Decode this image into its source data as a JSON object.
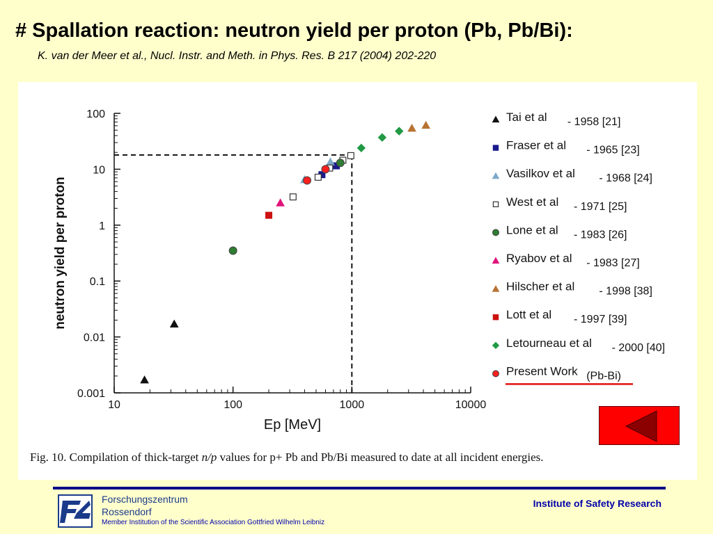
{
  "slide": {
    "title": "# Spallation reaction: neutron yield per proton (Pb, Pb/Bi):",
    "subtitle": "K. van der Meer et al., Nucl. Instr. and Meth. in Phys. Res. B 217 (2004) 202-220",
    "caption_prefix": "Fig. 10. Compilation of thick-target ",
    "caption_italic": "n/p",
    "caption_suffix": " values for p+ Pb and Pb/Bi measured to date at all incident energies.",
    "back_button_icon": "triangle-left-icon"
  },
  "footer": {
    "org_line1": "Forschungszentrum",
    "org_line2": "Rossendorf",
    "org_line3": "Member Institution of the Scientific Association Gottfried Wilhelm Leibniz",
    "institute": "Institute of Safety Research",
    "logo_icon": "fzr-logo-icon"
  },
  "colors": {
    "background": "#ffffcc",
    "accent_red": "#ff0000",
    "footer_blue": "#0000aa"
  },
  "chart_data": {
    "type": "scatter",
    "title": "",
    "xlabel": "Ep [MeV]",
    "ylabel": "neutron yield per proton",
    "xscale": "log",
    "yscale": "log",
    "xlim": [
      10,
      10000
    ],
    "ylim": [
      0.001,
      100
    ],
    "xticks": [
      "10",
      "100",
      "1000",
      "10000"
    ],
    "yticks": [
      "0.001",
      "0.01",
      "0.1",
      "1",
      "10",
      "100"
    ],
    "legend_position": "right",
    "reference_lines": {
      "x": 1000,
      "y": 18
    },
    "series": [
      {
        "name": "Tai et al",
        "ref": "- 1958 [21]",
        "marker": "triangle",
        "color": "#111111",
        "filled": true,
        "points": [
          [
            18,
            0.0017
          ],
          [
            32,
            0.017
          ]
        ]
      },
      {
        "name": "Fraser et al",
        "ref": "- 1965 [23]",
        "marker": "square",
        "color": "#1a1a8c",
        "filled": true,
        "points": [
          [
            560,
            8
          ],
          [
            740,
            11.5
          ]
        ]
      },
      {
        "name": "Vasilkov et al",
        "ref": "- 1968 [24]",
        "marker": "triangle",
        "color": "#7fa9c9",
        "filled": true,
        "points": [
          [
            400,
            6.5
          ],
          [
            660,
            13.5
          ]
        ]
      },
      {
        "name": "West et al",
        "ref": "- 1971 [25]",
        "marker": "square",
        "color": "#333333",
        "filled": false,
        "points": [
          [
            320,
            3.2
          ],
          [
            520,
            7.2
          ],
          [
            650,
            10.5
          ],
          [
            840,
            14.5
          ],
          [
            980,
            17.5
          ]
        ]
      },
      {
        "name": "Lone et al",
        "ref": "- 1983 [26]",
        "marker": "circle",
        "color": "#2e7d32",
        "filled": true,
        "points": [
          [
            100,
            0.35
          ],
          [
            800,
            13
          ]
        ]
      },
      {
        "name": "Ryabov et al",
        "ref": "- 1983 [27]",
        "marker": "triangle",
        "color": "#e0147a",
        "filled": true,
        "points": [
          [
            250,
            2.5
          ]
        ]
      },
      {
        "name": "Hilscher et al",
        "ref": "- 1998 [38]",
        "marker": "triangle",
        "color": "#b87333",
        "filled": true,
        "points": [
          [
            3200,
            54
          ],
          [
            4200,
            61
          ]
        ]
      },
      {
        "name": "Lott et al",
        "ref": "- 1997 [39]",
        "marker": "square",
        "color": "#cc1111",
        "filled": true,
        "points": [
          [
            200,
            1.5
          ]
        ]
      },
      {
        "name": "Letourneau et al",
        "ref": "- 2000 [40]",
        "marker": "diamond",
        "color": "#229944",
        "filled": true,
        "points": [
          [
            1200,
            24
          ],
          [
            1800,
            37
          ],
          [
            2500,
            48
          ]
        ]
      },
      {
        "name": "Present Work",
        "ref": "(Pb-Bi)",
        "marker": "circle",
        "color": "#ff2020",
        "filled": true,
        "points": [
          [
            420,
            6.3
          ],
          [
            600,
            10
          ]
        ]
      }
    ]
  }
}
